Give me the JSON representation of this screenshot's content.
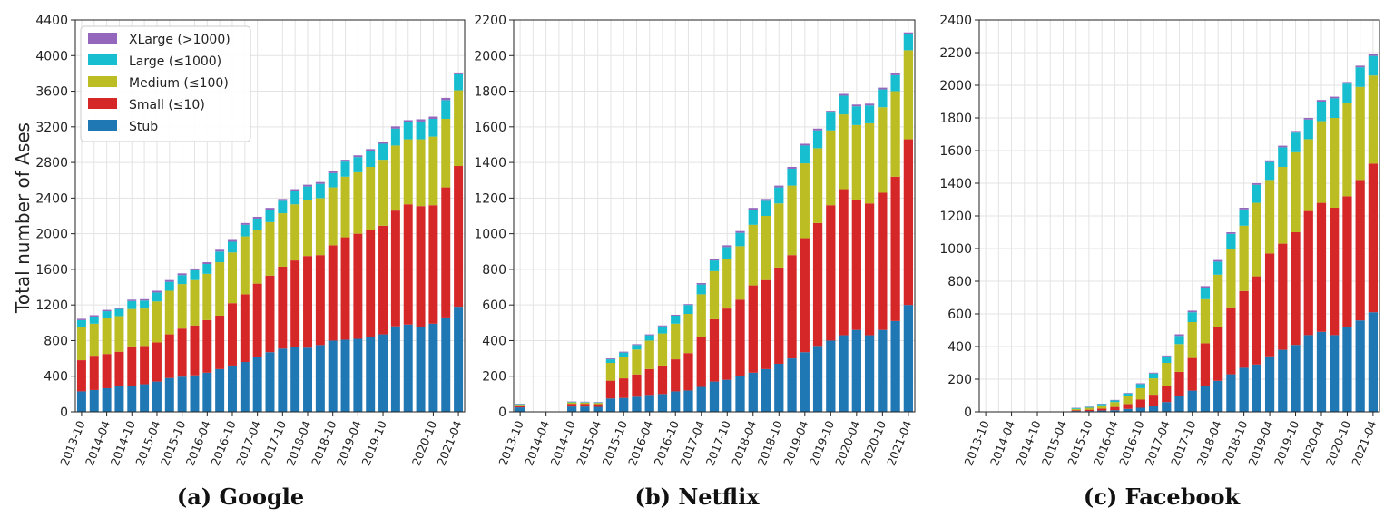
{
  "colors": {
    "Stub": "#1f77b4",
    "Small": "#d62728",
    "Medium": "#bcbd22",
    "Large": "#17becf",
    "XLarge": "#9467bd"
  },
  "legend": [
    {
      "key": "XLarge",
      "label": "XLarge (>1000)"
    },
    {
      "key": "Large",
      "label": "Large (≤1000)"
    },
    {
      "key": "Medium",
      "label": "Medium (≤100)"
    },
    {
      "key": "Small",
      "label": "Small (≤10)"
    },
    {
      "key": "Stub",
      "label": "Stub"
    }
  ],
  "chart_data": [
    {
      "type": "bar",
      "stacked": true,
      "caption": "(a) Google",
      "ylabel": "Total number of Ases",
      "ylim": [
        0,
        4400
      ],
      "yticks": [
        0,
        400,
        800,
        1200,
        1600,
        2000,
        2400,
        2800,
        3200,
        3600,
        4000,
        4400
      ],
      "grid": true,
      "legend_position": "top-left",
      "categories": [
        "2013-10",
        "2014-01",
        "2014-04",
        "2014-07",
        "2014-10",
        "2015-01",
        "2015-04",
        "2015-07",
        "2015-10",
        "2016-01",
        "2016-04",
        "2016-07",
        "2016-10",
        "2017-01",
        "2017-04",
        "2017-07",
        "2017-10",
        "2018-01",
        "2018-04",
        "2018-07",
        "2018-10",
        "2019-01",
        "2019-04",
        "2019-07",
        "2019-10",
        "2020-01",
        "2020-04",
        "2020-07",
        "2020-10",
        "2021-01",
        "2021-04"
      ],
      "xtick_labels": [
        "2013-10",
        "2014-04",
        "2014-10",
        "2015-04",
        "2015-10",
        "2016-04",
        "2016-10",
        "2017-04",
        "2017-10",
        "2018-04",
        "2018-10",
        "2019-04",
        "2019-10",
        "2020-10",
        "2021-04"
      ],
      "series": [
        {
          "name": "Stub",
          "values": [
            230,
            245,
            265,
            285,
            295,
            310,
            340,
            380,
            395,
            410,
            440,
            480,
            520,
            560,
            620,
            670,
            710,
            730,
            720,
            750,
            800,
            810,
            820,
            840,
            870,
            960,
            980,
            950,
            990,
            1060,
            1180
          ]
        },
        {
          "name": "Small (≤10)",
          "values": [
            350,
            385,
            385,
            390,
            440,
            430,
            440,
            490,
            540,
            560,
            590,
            600,
            700,
            760,
            820,
            860,
            920,
            970,
            1030,
            1010,
            1070,
            1150,
            1180,
            1200,
            1220,
            1300,
            1350,
            1360,
            1330,
            1460,
            1580
          ]
        },
        {
          "name": "Medium (≤100)",
          "values": [
            370,
            360,
            400,
            400,
            420,
            420,
            460,
            490,
            500,
            510,
            520,
            600,
            570,
            650,
            600,
            600,
            600,
            630,
            630,
            640,
            650,
            680,
            690,
            710,
            740,
            730,
            730,
            750,
            770,
            770,
            850
          ]
        },
        {
          "name": "Large (≤1000)",
          "values": [
            80,
            80,
            80,
            80,
            90,
            90,
            100,
            100,
            100,
            110,
            110,
            120,
            120,
            130,
            130,
            140,
            140,
            150,
            150,
            160,
            160,
            170,
            170,
            180,
            180,
            190,
            190,
            200,
            200,
            210,
            180
          ]
        },
        {
          "name": "XLarge (>1000)",
          "values": [
            15,
            15,
            15,
            15,
            15,
            15,
            20,
            20,
            20,
            20,
            20,
            20,
            20,
            20,
            20,
            20,
            20,
            20,
            20,
            20,
            20,
            20,
            20,
            20,
            20,
            25,
            25,
            25,
            25,
            25,
            20
          ]
        }
      ]
    },
    {
      "type": "bar",
      "stacked": true,
      "caption": "(b) Netflix",
      "ylim": [
        0,
        2200
      ],
      "yticks": [
        0,
        200,
        400,
        600,
        800,
        1000,
        1200,
        1400,
        1600,
        1800,
        2000,
        2200
      ],
      "grid": true,
      "categories": [
        "2013-10",
        "2014-01",
        "2014-04",
        "2014-07",
        "2014-10",
        "2015-01",
        "2015-04",
        "2015-07",
        "2015-10",
        "2016-01",
        "2016-04",
        "2016-07",
        "2016-10",
        "2017-01",
        "2017-04",
        "2017-07",
        "2017-10",
        "2018-01",
        "2018-04",
        "2018-07",
        "2018-10",
        "2019-01",
        "2019-04",
        "2019-07",
        "2019-10",
        "2020-01",
        "2020-04",
        "2020-07",
        "2020-10",
        "2021-01",
        "2021-04"
      ],
      "xtick_labels": [
        "2013-10",
        "2014-04",
        "2014-10",
        "2015-04",
        "2015-10",
        "2016-04",
        "2016-10",
        "2017-04",
        "2017-10",
        "2018-04",
        "2018-10",
        "2019-04",
        "2019-10",
        "2020-04",
        "2020-10",
        "2021-04"
      ],
      "series": [
        {
          "name": "Stub",
          "values": [
            25,
            0,
            0,
            0,
            30,
            30,
            28,
            75,
            78,
            85,
            95,
            100,
            115,
            120,
            140,
            170,
            180,
            200,
            220,
            240,
            270,
            300,
            335,
            370,
            400,
            430,
            460,
            430,
            460,
            510,
            600
          ]
        },
        {
          "name": "Small (≤10)",
          "values": [
            8,
            0,
            0,
            0,
            15,
            15,
            15,
            100,
            110,
            125,
            145,
            160,
            180,
            210,
            280,
            350,
            400,
            430,
            490,
            500,
            540,
            580,
            640,
            690,
            760,
            820,
            730,
            740,
            770,
            810,
            930
          ]
        },
        {
          "name": "Medium (≤100)",
          "values": [
            7,
            0,
            0,
            0,
            8,
            7,
            7,
            100,
            120,
            140,
            160,
            180,
            200,
            220,
            240,
            270,
            280,
            300,
            340,
            360,
            360,
            390,
            420,
            420,
            420,
            420,
            420,
            450,
            480,
            480,
            500
          ]
        },
        {
          "name": "Large (≤1000)",
          "values": [
            3,
            0,
            0,
            0,
            3,
            3,
            3,
            20,
            25,
            25,
            30,
            40,
            45,
            50,
            55,
            60,
            65,
            75,
            85,
            85,
            90,
            95,
            100,
            100,
            100,
            105,
            105,
            100,
            100,
            90,
            90
          ]
        },
        {
          "name": "XLarge (>1000)",
          "values": [
            2,
            0,
            0,
            0,
            2,
            2,
            2,
            5,
            5,
            5,
            5,
            5,
            5,
            5,
            8,
            10,
            10,
            10,
            10,
            10,
            10,
            10,
            10,
            10,
            10,
            10,
            10,
            10,
            10,
            10,
            10
          ]
        }
      ]
    },
    {
      "type": "bar",
      "stacked": true,
      "caption": "(c) Facebook",
      "ylim": [
        0,
        2400
      ],
      "yticks": [
        0,
        200,
        400,
        600,
        800,
        1000,
        1200,
        1400,
        1600,
        1800,
        2000,
        2200,
        2400
      ],
      "grid": true,
      "categories": [
        "2013-10",
        "2014-01",
        "2014-04",
        "2014-07",
        "2014-10",
        "2015-01",
        "2015-04",
        "2015-07",
        "2015-10",
        "2016-01",
        "2016-04",
        "2016-07",
        "2016-10",
        "2017-01",
        "2017-04",
        "2017-07",
        "2017-10",
        "2018-01",
        "2018-04",
        "2018-07",
        "2018-10",
        "2019-01",
        "2019-04",
        "2019-07",
        "2019-10",
        "2020-01",
        "2020-04",
        "2020-07",
        "2020-10",
        "2021-01",
        "2021-04"
      ],
      "xtick_labels": [
        "2013-10",
        "2014-04",
        "2014-10",
        "2015-04",
        "2015-10",
        "2016-04",
        "2016-10",
        "2017-04",
        "2017-10",
        "2018-04",
        "2018-10",
        "2019-04",
        "2019-10",
        "2020-04",
        "2020-10",
        "2021-04"
      ],
      "series": [
        {
          "name": "Stub",
          "values": [
            0,
            0,
            0,
            0,
            0,
            0,
            0,
            5,
            5,
            8,
            10,
            18,
            25,
            35,
            60,
            95,
            130,
            160,
            190,
            230,
            270,
            290,
            340,
            380,
            410,
            470,
            490,
            470,
            520,
            560,
            610
          ]
        },
        {
          "name": "Small (≤10)",
          "values": [
            0,
            0,
            0,
            0,
            0,
            0,
            0,
            5,
            8,
            12,
            20,
            30,
            50,
            70,
            100,
            150,
            200,
            260,
            330,
            410,
            470,
            540,
            630,
            650,
            690,
            760,
            790,
            780,
            800,
            860,
            910
          ]
        },
        {
          "name": "Medium (≤100)",
          "values": [
            0,
            0,
            0,
            0,
            0,
            0,
            0,
            8,
            12,
            20,
            30,
            50,
            70,
            100,
            140,
            170,
            220,
            270,
            320,
            360,
            400,
            450,
            450,
            470,
            490,
            440,
            500,
            550,
            570,
            570,
            540
          ]
        },
        {
          "name": "Large (≤1000)",
          "values": [
            0,
            0,
            0,
            0,
            0,
            0,
            0,
            5,
            5,
            8,
            10,
            15,
            25,
            30,
            40,
            50,
            60,
            70,
            80,
            90,
            100,
            110,
            110,
            120,
            120,
            120,
            120,
            120,
            120,
            120,
            120
          ]
        },
        {
          "name": "XLarge (>1000)",
          "values": [
            0,
            0,
            0,
            0,
            0,
            0,
            0,
            2,
            2,
            2,
            3,
            3,
            5,
            5,
            5,
            10,
            10,
            10,
            10,
            10,
            10,
            10,
            10,
            10,
            10,
            10,
            10,
            10,
            10,
            10,
            10
          ]
        }
      ]
    }
  ]
}
